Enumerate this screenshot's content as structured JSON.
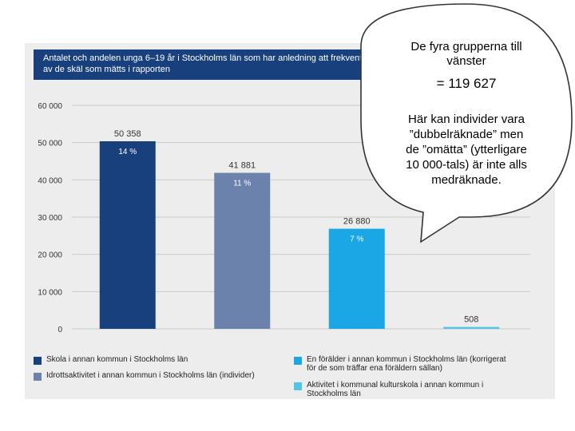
{
  "chart_data": {
    "type": "bar",
    "title_lines": [
      "Antalet och andelen unga 6–19 år i Stockholms län som har anledning att frekvent",
      "av de skäl som mätts i rapporten"
    ],
    "categories": [
      "Skola i annan kommun i Stockholms län",
      "Idrottsaktivitet i annan kommun i Stockholms län (individer)",
      "En förälder i annan kommun i Stockholms län (korrigerat för de som träffar ena föräldern sällan)",
      "Aktivitet i kommunal kulturskola i annan kommun i Stockholms län"
    ],
    "values": [
      50358,
      41881,
      26880,
      508
    ],
    "value_labels": [
      "50 358",
      "41 881",
      "26 880",
      "508"
    ],
    "percent_labels": [
      "14 %",
      "11 %",
      "7 %",
      ""
    ],
    "colors": [
      "#17407d",
      "#6b82ad",
      "#1ba6e6",
      "#4fc6e8"
    ],
    "ylim": [
      0,
      60000
    ],
    "yticks": [
      0,
      10000,
      20000,
      30000,
      40000,
      50000,
      60000
    ],
    "ytick_labels": [
      "0",
      "10 000",
      "20 000",
      "30 000",
      "40 000",
      "50 000",
      "60 000"
    ],
    "grid": true,
    "legend": [
      {
        "lines": [
          "Skola i annan kommun i Stockholms län"
        ],
        "color": "#17407d"
      },
      {
        "lines": [
          "Idrottsaktivitet i annan kommun i Stockholms län (individer)"
        ],
        "color": "#6b82ad"
      },
      {
        "lines": [
          "En förälder i annan kommun i Stockholms län (korrigerat",
          "för de som träffar ena föräldern sällan)"
        ],
        "color": "#1ba6e6"
      },
      {
        "lines": [
          "Aktivitet i kommunal kulturskola i annan kommun i",
          "Stockholms län"
        ],
        "color": "#4fc6e8"
      }
    ]
  },
  "callout": {
    "line1": "De fyra grupperna till",
    "line2": "vänster",
    "total": "= 119 627",
    "note_lines": [
      "Här kan individer vara",
      "”dubbelräknade” men",
      "de ”omätta” (ytterligare",
      "10 000-tals) är inte alls",
      "medräknade."
    ]
  }
}
